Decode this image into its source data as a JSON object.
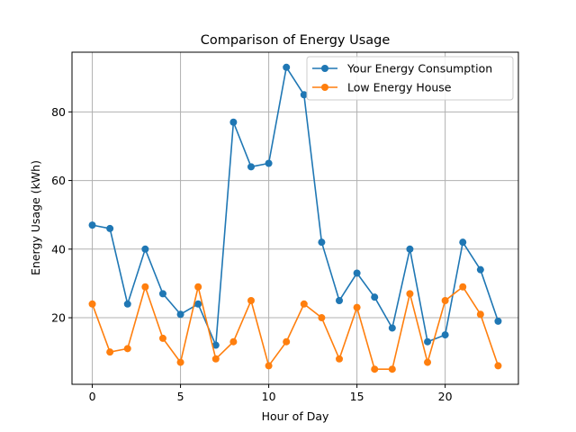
{
  "chart_data": {
    "type": "line",
    "title": "Comparison of Energy Usage",
    "xlabel": "Hour of Day",
    "ylabel": "Energy Usage (kWh)",
    "xlim": [
      -1.15,
      24.15
    ],
    "ylim": [
      0.6,
      97.4
    ],
    "xticks": [
      0,
      5,
      10,
      15,
      20
    ],
    "yticks": [
      20,
      40,
      60,
      80
    ],
    "grid": true,
    "legend_position": "top-right",
    "x": [
      0,
      1,
      2,
      3,
      4,
      5,
      6,
      7,
      8,
      9,
      10,
      11,
      12,
      13,
      14,
      15,
      16,
      17,
      18,
      19,
      20,
      21,
      22,
      23
    ],
    "series": [
      {
        "name": "Your Energy Consumption",
        "color": "#1f77b4",
        "values": [
          47,
          46,
          24,
          40,
          27,
          21,
          24,
          12,
          77,
          64,
          65,
          93,
          85,
          42,
          25,
          33,
          26,
          17,
          40,
          13,
          15,
          42,
          34,
          19
        ]
      },
      {
        "name": "Low Energy House",
        "color": "#ff7f0e",
        "values": [
          24,
          10,
          11,
          29,
          14,
          7,
          29,
          8,
          13,
          25,
          6,
          13,
          24,
          20,
          8,
          23,
          5,
          5,
          27,
          7,
          25,
          29,
          21,
          6
        ]
      }
    ]
  }
}
